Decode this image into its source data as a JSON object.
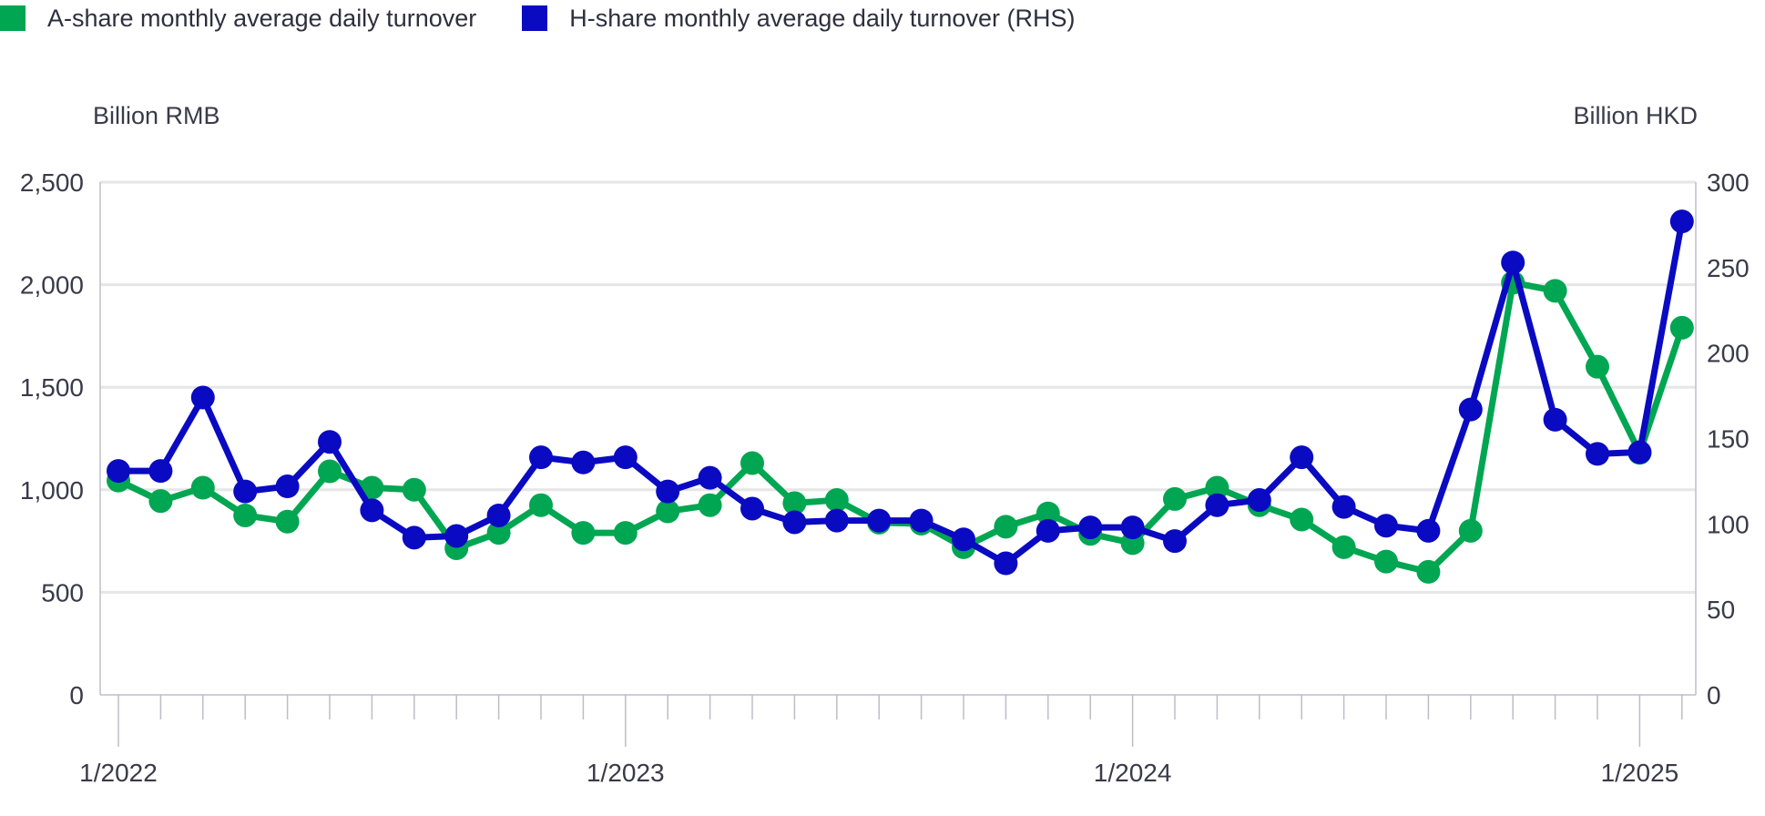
{
  "legend": {
    "a_label": "A-share monthly average daily turnover",
    "h_label": "H-share monthly average daily turnover (RHS)"
  },
  "colors": {
    "a_share": "#00A651",
    "h_share": "#0A0AC2",
    "grid": "#e6e6e6",
    "axis": "#bdbdc8"
  },
  "chart_data": {
    "type": "line",
    "left_axis_unit": "Billion RMB",
    "right_axis_unit": "Billion HKD",
    "y_left_range": [
      0,
      2500
    ],
    "y_left_ticks": [
      "0",
      "500",
      "1,000",
      "1,500",
      "2,000",
      "2,500"
    ],
    "y_right_range": [
      0,
      300
    ],
    "y_right_ticks": [
      "0",
      "50",
      "100",
      "150",
      "200",
      "250",
      "300"
    ],
    "x_tick_labels": [
      "1/2022",
      "1/2023",
      "1/2024",
      "1/2025"
    ],
    "x_tick_label_months": [
      0,
      12,
      24,
      36
    ],
    "month_count": 38,
    "grid": true,
    "legend_position": "top-left",
    "series": [
      {
        "name": "A-share monthly average daily turnover",
        "axis": "left",
        "values": [
          1045,
          945,
          1010,
          875,
          845,
          1090,
          1010,
          1000,
          715,
          790,
          925,
          790,
          790,
          895,
          925,
          1130,
          935,
          950,
          840,
          835,
          720,
          820,
          885,
          785,
          740,
          955,
          1010,
          925,
          855,
          720,
          650,
          600,
          800,
          2010,
          1970,
          1600,
          1180,
          1790
        ]
      },
      {
        "name": "H-share monthly average daily turnover (RHS)",
        "axis": "right",
        "values": [
          131,
          131,
          174,
          119,
          122,
          148,
          108,
          92,
          93,
          105,
          139,
          136,
          139,
          119,
          127,
          109,
          101,
          102,
          102,
          102,
          91,
          77,
          96,
          98,
          98,
          90,
          111,
          114,
          139,
          110,
          99,
          96,
          167,
          253,
          161,
          141,
          142,
          277
        ]
      }
    ]
  }
}
